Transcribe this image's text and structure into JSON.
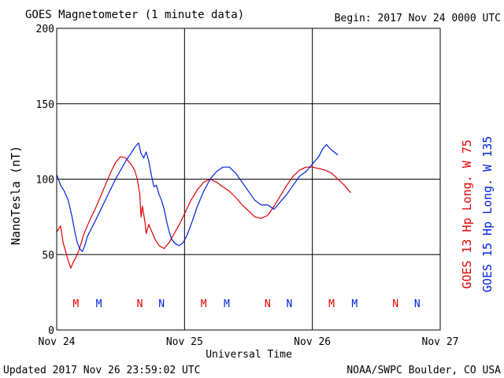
{
  "chart_data": {
    "type": "line",
    "title": "GOES Magnetometer (1 minute data)",
    "begin_label": "Begin:  2017 Nov 24 0000 UTC",
    "ylabel": "NanoTesla (nT)",
    "xlabel": "Universal Time",
    "ylim": [
      0,
      200
    ],
    "xlim_days": [
      0,
      3
    ],
    "grid": true,
    "y_ticks": [
      "0",
      "50",
      "100",
      "150",
      "200"
    ],
    "x_ticks": [
      "Nov 24",
      "Nov 25",
      "Nov 26",
      "Nov 27"
    ],
    "series": [
      {
        "name": "GOES 13 Hp  Long. W 75",
        "color": "#e00000",
        "points": [
          [
            0.0,
            65
          ],
          [
            0.03,
            69
          ],
          [
            0.05,
            58
          ],
          [
            0.07,
            52
          ],
          [
            0.09,
            46
          ],
          [
            0.11,
            41
          ],
          [
            0.13,
            45
          ],
          [
            0.15,
            48
          ],
          [
            0.17,
            52
          ],
          [
            0.19,
            57
          ],
          [
            0.21,
            63
          ],
          [
            0.23,
            67
          ],
          [
            0.26,
            73
          ],
          [
            0.3,
            80
          ],
          [
            0.34,
            88
          ],
          [
            0.38,
            96
          ],
          [
            0.42,
            104
          ],
          [
            0.46,
            111
          ],
          [
            0.5,
            115
          ],
          [
            0.54,
            114
          ],
          [
            0.58,
            110
          ],
          [
            0.61,
            106
          ],
          [
            0.63,
            100
          ],
          [
            0.65,
            90
          ],
          [
            0.66,
            75
          ],
          [
            0.67,
            82
          ],
          [
            0.69,
            72
          ],
          [
            0.7,
            64
          ],
          [
            0.72,
            70
          ],
          [
            0.74,
            66
          ],
          [
            0.77,
            60
          ],
          [
            0.8,
            56
          ],
          [
            0.84,
            54
          ],
          [
            0.88,
            58
          ],
          [
            0.92,
            64
          ],
          [
            0.96,
            70
          ],
          [
            1.0,
            77
          ],
          [
            1.05,
            86
          ],
          [
            1.1,
            93
          ],
          [
            1.15,
            98
          ],
          [
            1.2,
            100
          ],
          [
            1.25,
            98
          ],
          [
            1.3,
            95
          ],
          [
            1.35,
            92
          ],
          [
            1.4,
            88
          ],
          [
            1.45,
            83
          ],
          [
            1.5,
            79
          ],
          [
            1.55,
            75
          ],
          [
            1.6,
            74
          ],
          [
            1.65,
            76
          ],
          [
            1.7,
            82
          ],
          [
            1.75,
            89
          ],
          [
            1.8,
            96
          ],
          [
            1.85,
            102
          ],
          [
            1.9,
            106
          ],
          [
            1.95,
            108
          ],
          [
            2.0,
            108
          ],
          [
            2.05,
            107
          ],
          [
            2.1,
            106
          ],
          [
            2.15,
            104
          ],
          [
            2.2,
            100
          ],
          [
            2.25,
            96
          ],
          [
            2.28,
            93
          ],
          [
            2.3,
            91
          ]
        ]
      },
      {
        "name": "GOES 15 Hp  Long. W 135",
        "color": "#0020e0",
        "points": [
          [
            0.0,
            103
          ],
          [
            0.03,
            96
          ],
          [
            0.06,
            92
          ],
          [
            0.09,
            86
          ],
          [
            0.12,
            75
          ],
          [
            0.14,
            66
          ],
          [
            0.16,
            58
          ],
          [
            0.18,
            54
          ],
          [
            0.2,
            52
          ],
          [
            0.22,
            56
          ],
          [
            0.24,
            62
          ],
          [
            0.27,
            67
          ],
          [
            0.3,
            72
          ],
          [
            0.34,
            79
          ],
          [
            0.38,
            86
          ],
          [
            0.42,
            93
          ],
          [
            0.46,
            100
          ],
          [
            0.5,
            106
          ],
          [
            0.54,
            112
          ],
          [
            0.58,
            117
          ],
          [
            0.61,
            121
          ],
          [
            0.64,
            124
          ],
          [
            0.66,
            117
          ],
          [
            0.68,
            114
          ],
          [
            0.7,
            118
          ],
          [
            0.72,
            112
          ],
          [
            0.74,
            103
          ],
          [
            0.76,
            95
          ],
          [
            0.78,
            96
          ],
          [
            0.8,
            90
          ],
          [
            0.82,
            86
          ],
          [
            0.84,
            80
          ],
          [
            0.86,
            72
          ],
          [
            0.88,
            65
          ],
          [
            0.9,
            60
          ],
          [
            0.93,
            57
          ],
          [
            0.96,
            56
          ],
          [
            0.99,
            58
          ],
          [
            1.02,
            63
          ],
          [
            1.06,
            72
          ],
          [
            1.1,
            82
          ],
          [
            1.15,
            92
          ],
          [
            1.2,
            100
          ],
          [
            1.25,
            105
          ],
          [
            1.3,
            108
          ],
          [
            1.35,
            108
          ],
          [
            1.4,
            104
          ],
          [
            1.45,
            98
          ],
          [
            1.5,
            92
          ],
          [
            1.55,
            86
          ],
          [
            1.6,
            83
          ],
          [
            1.65,
            83
          ],
          [
            1.7,
            80
          ],
          [
            1.75,
            85
          ],
          [
            1.8,
            90
          ],
          [
            1.85,
            96
          ],
          [
            1.9,
            102
          ],
          [
            1.95,
            105
          ],
          [
            2.0,
            110
          ],
          [
            2.05,
            115
          ],
          [
            2.08,
            120
          ],
          [
            2.11,
            123
          ],
          [
            2.14,
            120
          ],
          [
            2.17,
            118
          ],
          [
            2.2,
            116
          ]
        ]
      }
    ],
    "markers": [
      {
        "label": "M",
        "x": 0.15,
        "color": "#e00000"
      },
      {
        "label": "M",
        "x": 0.33,
        "color": "#0020e0"
      },
      {
        "label": "N",
        "x": 0.65,
        "color": "#e00000"
      },
      {
        "label": "N",
        "x": 0.82,
        "color": "#0020e0"
      },
      {
        "label": "M",
        "x": 1.15,
        "color": "#e00000"
      },
      {
        "label": "M",
        "x": 1.33,
        "color": "#0020e0"
      },
      {
        "label": "N",
        "x": 1.65,
        "color": "#e00000"
      },
      {
        "label": "N",
        "x": 1.82,
        "color": "#0020e0"
      },
      {
        "label": "M",
        "x": 2.15,
        "color": "#e00000"
      },
      {
        "label": "M",
        "x": 2.33,
        "color": "#0020e0"
      },
      {
        "label": "N",
        "x": 2.65,
        "color": "#e00000"
      },
      {
        "label": "N",
        "x": 2.82,
        "color": "#0020e0"
      }
    ]
  },
  "footer": {
    "updated": "Updated 2017 Nov 26 23:59:02 UTC",
    "credit": "NOAA/SWPC Boulder, CO USA"
  }
}
